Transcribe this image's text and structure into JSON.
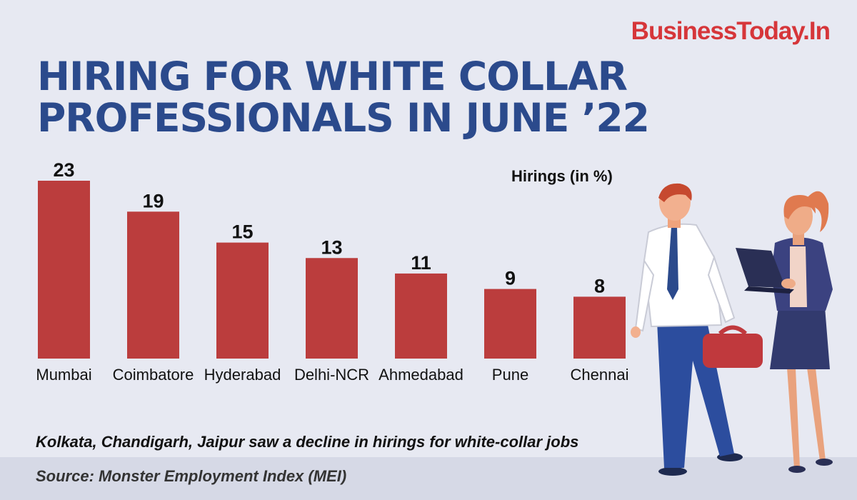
{
  "brand": "BusinessToday.In",
  "title_lines": [
    "HIRING FOR WHITE COLLAR",
    "PROFESSIONALS IN JUNE ’22"
  ],
  "note": "Kolkata, Chandigarh, Jaipur saw a decline in hirings for white-collar jobs",
  "source": "Source: Monster Employment Index (MEI)",
  "colors": {
    "background": "#e7e9f2",
    "bar": "#bb3d3d",
    "title": "#2b4a8c",
    "brand": "#d6363a"
  },
  "illustration_icon": "business-people-illustration",
  "chart_data": {
    "type": "bar",
    "categories": [
      "Mumbai",
      "Coimbatore",
      "Hyderabad",
      "Delhi-NCR",
      "Ahmedabad",
      "Pune",
      "Chennai"
    ],
    "values": [
      23,
      19,
      15,
      13,
      11,
      9,
      8
    ],
    "ylabel": "Hirings (in %)",
    "ylim": [
      0,
      23
    ],
    "grid": false,
    "data_labels": true,
    "legend": "none"
  }
}
